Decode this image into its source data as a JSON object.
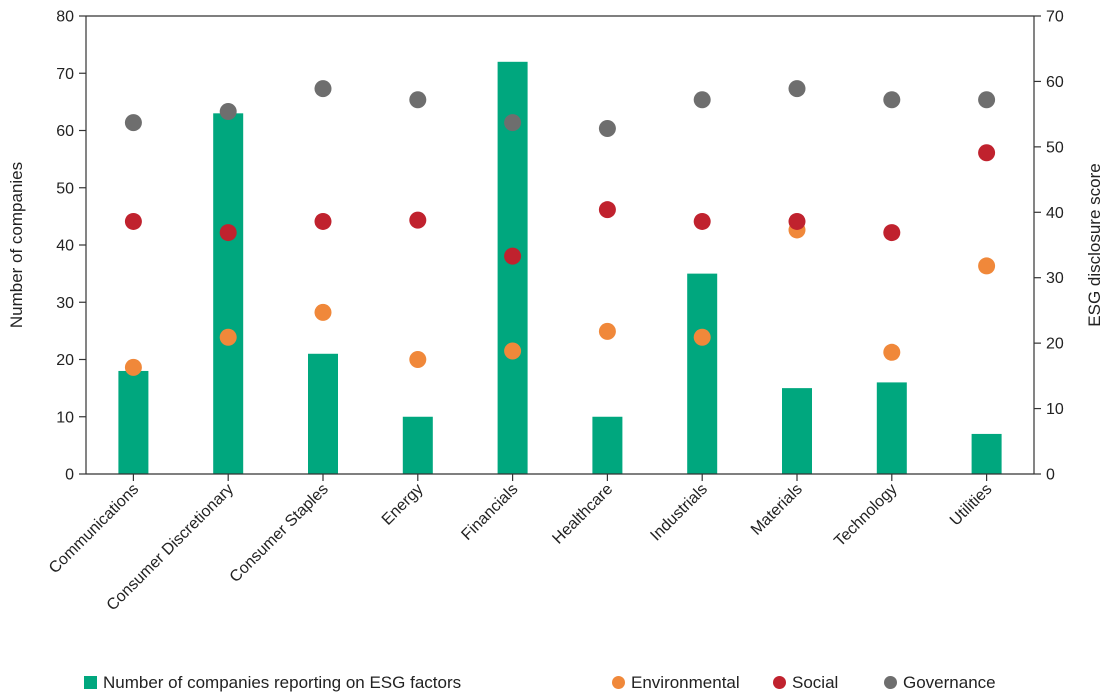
{
  "chart_data": {
    "type": "bar",
    "categories": [
      "Communications",
      "Consumer Discretionary",
      "Consumer Staples",
      "Energy",
      "Financials",
      "Healthcare",
      "Industrials",
      "Materials",
      "Technology",
      "Utilities"
    ],
    "left_axis": {
      "label": "Number of companies",
      "ylim": [
        0,
        80
      ],
      "ticks": [
        "0",
        "10",
        "20",
        "30",
        "40",
        "50",
        "60",
        "70",
        "80"
      ]
    },
    "right_axis": {
      "label": "ESG disclosure score",
      "ylim": [
        0,
        70
      ],
      "ticks": [
        "0",
        "10",
        "20",
        "30",
        "40",
        "50",
        "60",
        "70"
      ]
    },
    "series": [
      {
        "name": "Number of companies reporting on ESG factors",
        "kind": "bar",
        "axis": "left",
        "color": "#00a77e",
        "values": [
          18,
          63,
          21,
          10,
          72,
          10,
          35,
          15,
          16,
          7
        ]
      },
      {
        "name": "Environmental",
        "kind": "scatter",
        "axis": "right",
        "color": "#f0883a",
        "values": [
          16.3,
          20.9,
          24.7,
          17.5,
          18.8,
          21.8,
          20.9,
          37.3,
          18.6,
          31.8
        ]
      },
      {
        "name": "Social",
        "kind": "scatter",
        "axis": "right",
        "color": "#c0222e",
        "values": [
          38.6,
          36.9,
          38.6,
          38.8,
          33.3,
          40.4,
          38.6,
          38.6,
          36.9,
          49.1
        ]
      },
      {
        "name": "Governance",
        "kind": "scatter",
        "axis": "right",
        "color": "#6e6e6e",
        "values": [
          53.7,
          55.4,
          58.9,
          57.2,
          53.7,
          52.8,
          57.2,
          58.9,
          57.2,
          57.2
        ]
      }
    ],
    "legend_position": "bottom"
  }
}
